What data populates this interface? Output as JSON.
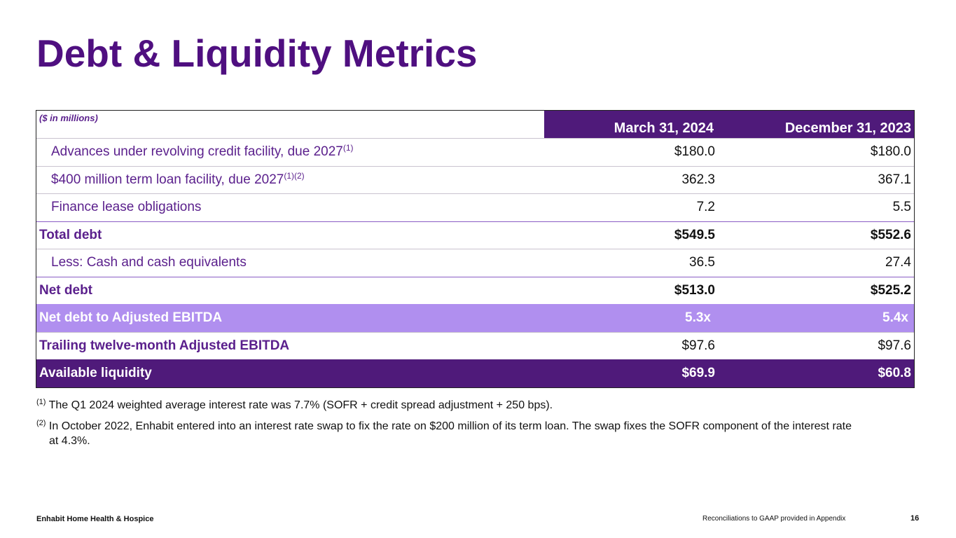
{
  "title": "Debt & Liquidity Metrics",
  "table": {
    "units_label": "($ in millions)",
    "col1_header": "March 31, 2024",
    "col2_header": "December 31, 2023",
    "rows": [
      {
        "label": "Advances under revolving credit facility, due 2027",
        "sup": "(1)",
        "v1": "$180.0",
        "v2": "$180.0"
      },
      {
        "label": "$400 million term loan facility, due 2027",
        "sup": "(1)(2)",
        "v1": "362.3",
        "v2": "367.1"
      },
      {
        "label": "Finance lease obligations",
        "v1": "7.2",
        "v2": "5.5"
      },
      {
        "label": "Total debt",
        "v1": "$549.5",
        "v2": "$552.6"
      },
      {
        "label": "Less: Cash and cash equivalents",
        "v1": "36.5",
        "v2": "27.4"
      },
      {
        "label": "Net debt",
        "v1": "$513.0",
        "v2": "$525.2"
      },
      {
        "label": "Net debt to Adjusted EBITDA",
        "v1": "5.3x",
        "v2": "5.4x"
      },
      {
        "label": "Trailing twelve-month Adjusted EBITDA",
        "v1": "$97.6",
        "v2": "$97.6"
      },
      {
        "label": "Available liquidity",
        "v1": "$69.9",
        "v2": "$60.8"
      }
    ]
  },
  "footnotes": {
    "fn1_marker": "(1)",
    "fn1_text": "The Q1 2024 weighted average interest rate was 7.7% (SOFR + credit spread adjustment + 250 bps).",
    "fn2_marker": "(2)",
    "fn2_text": "In October 2022, Enhabit entered into an interest rate swap to fix the rate on $200 million of its term loan. The swap fixes the SOFR component of the interest rate",
    "fn2_cont": "at 4.3%."
  },
  "footer": {
    "company": "Enhabit Home Health & Hospice",
    "note": "Reconciliations to GAAP provided in Appendix",
    "page": "16"
  },
  "colors": {
    "brand_purple": "#4f0f80",
    "header_fill": "#4f1a7a",
    "highlight_fill": "#b08fef"
  }
}
